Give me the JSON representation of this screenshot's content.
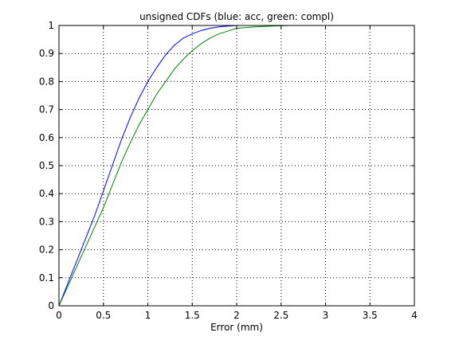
{
  "chart_data": {
    "type": "line",
    "title": "unsigned CDFs (blue: acc, green: compl)",
    "xlabel": "Error (mm)",
    "ylabel": "",
    "xlim": [
      0,
      4
    ],
    "ylim": [
      0,
      1
    ],
    "grid": true,
    "x_ticks": [
      "0",
      "0.5",
      "1",
      "1.5",
      "2",
      "2.5",
      "3",
      "3.5",
      "4"
    ],
    "y_ticks": [
      "0",
      "0.1",
      "0.2",
      "0.3",
      "0.4",
      "0.5",
      "0.6",
      "0.7",
      "0.8",
      "0.9",
      "1"
    ],
    "x": [
      0,
      0.1,
      0.2,
      0.3,
      0.4,
      0.5,
      0.6,
      0.7,
      0.8,
      0.9,
      1.0,
      1.1,
      1.2,
      1.3,
      1.4,
      1.5,
      1.6,
      1.7,
      1.8,
      1.9,
      2.0,
      2.2,
      2.4,
      2.6,
      3.0,
      3.5,
      4.0
    ],
    "series": [
      {
        "color": "#0000ff",
        "values": [
          0,
          0.08,
          0.16,
          0.24,
          0.32,
          0.41,
          0.5,
          0.59,
          0.67,
          0.74,
          0.8,
          0.85,
          0.895,
          0.93,
          0.955,
          0.97,
          0.982,
          0.99,
          0.995,
          0.998,
          1.0,
          1.0,
          1.0,
          1.0,
          1.0,
          1.0,
          1.0
        ]
      },
      {
        "color": "#008000",
        "values": [
          0,
          0.07,
          0.14,
          0.21,
          0.28,
          0.35,
          0.43,
          0.51,
          0.58,
          0.645,
          0.7,
          0.755,
          0.8,
          0.845,
          0.88,
          0.91,
          0.935,
          0.955,
          0.97,
          0.98,
          0.99,
          0.995,
          0.998,
          1.0,
          1.0,
          1.0,
          1.0
        ]
      }
    ]
  }
}
